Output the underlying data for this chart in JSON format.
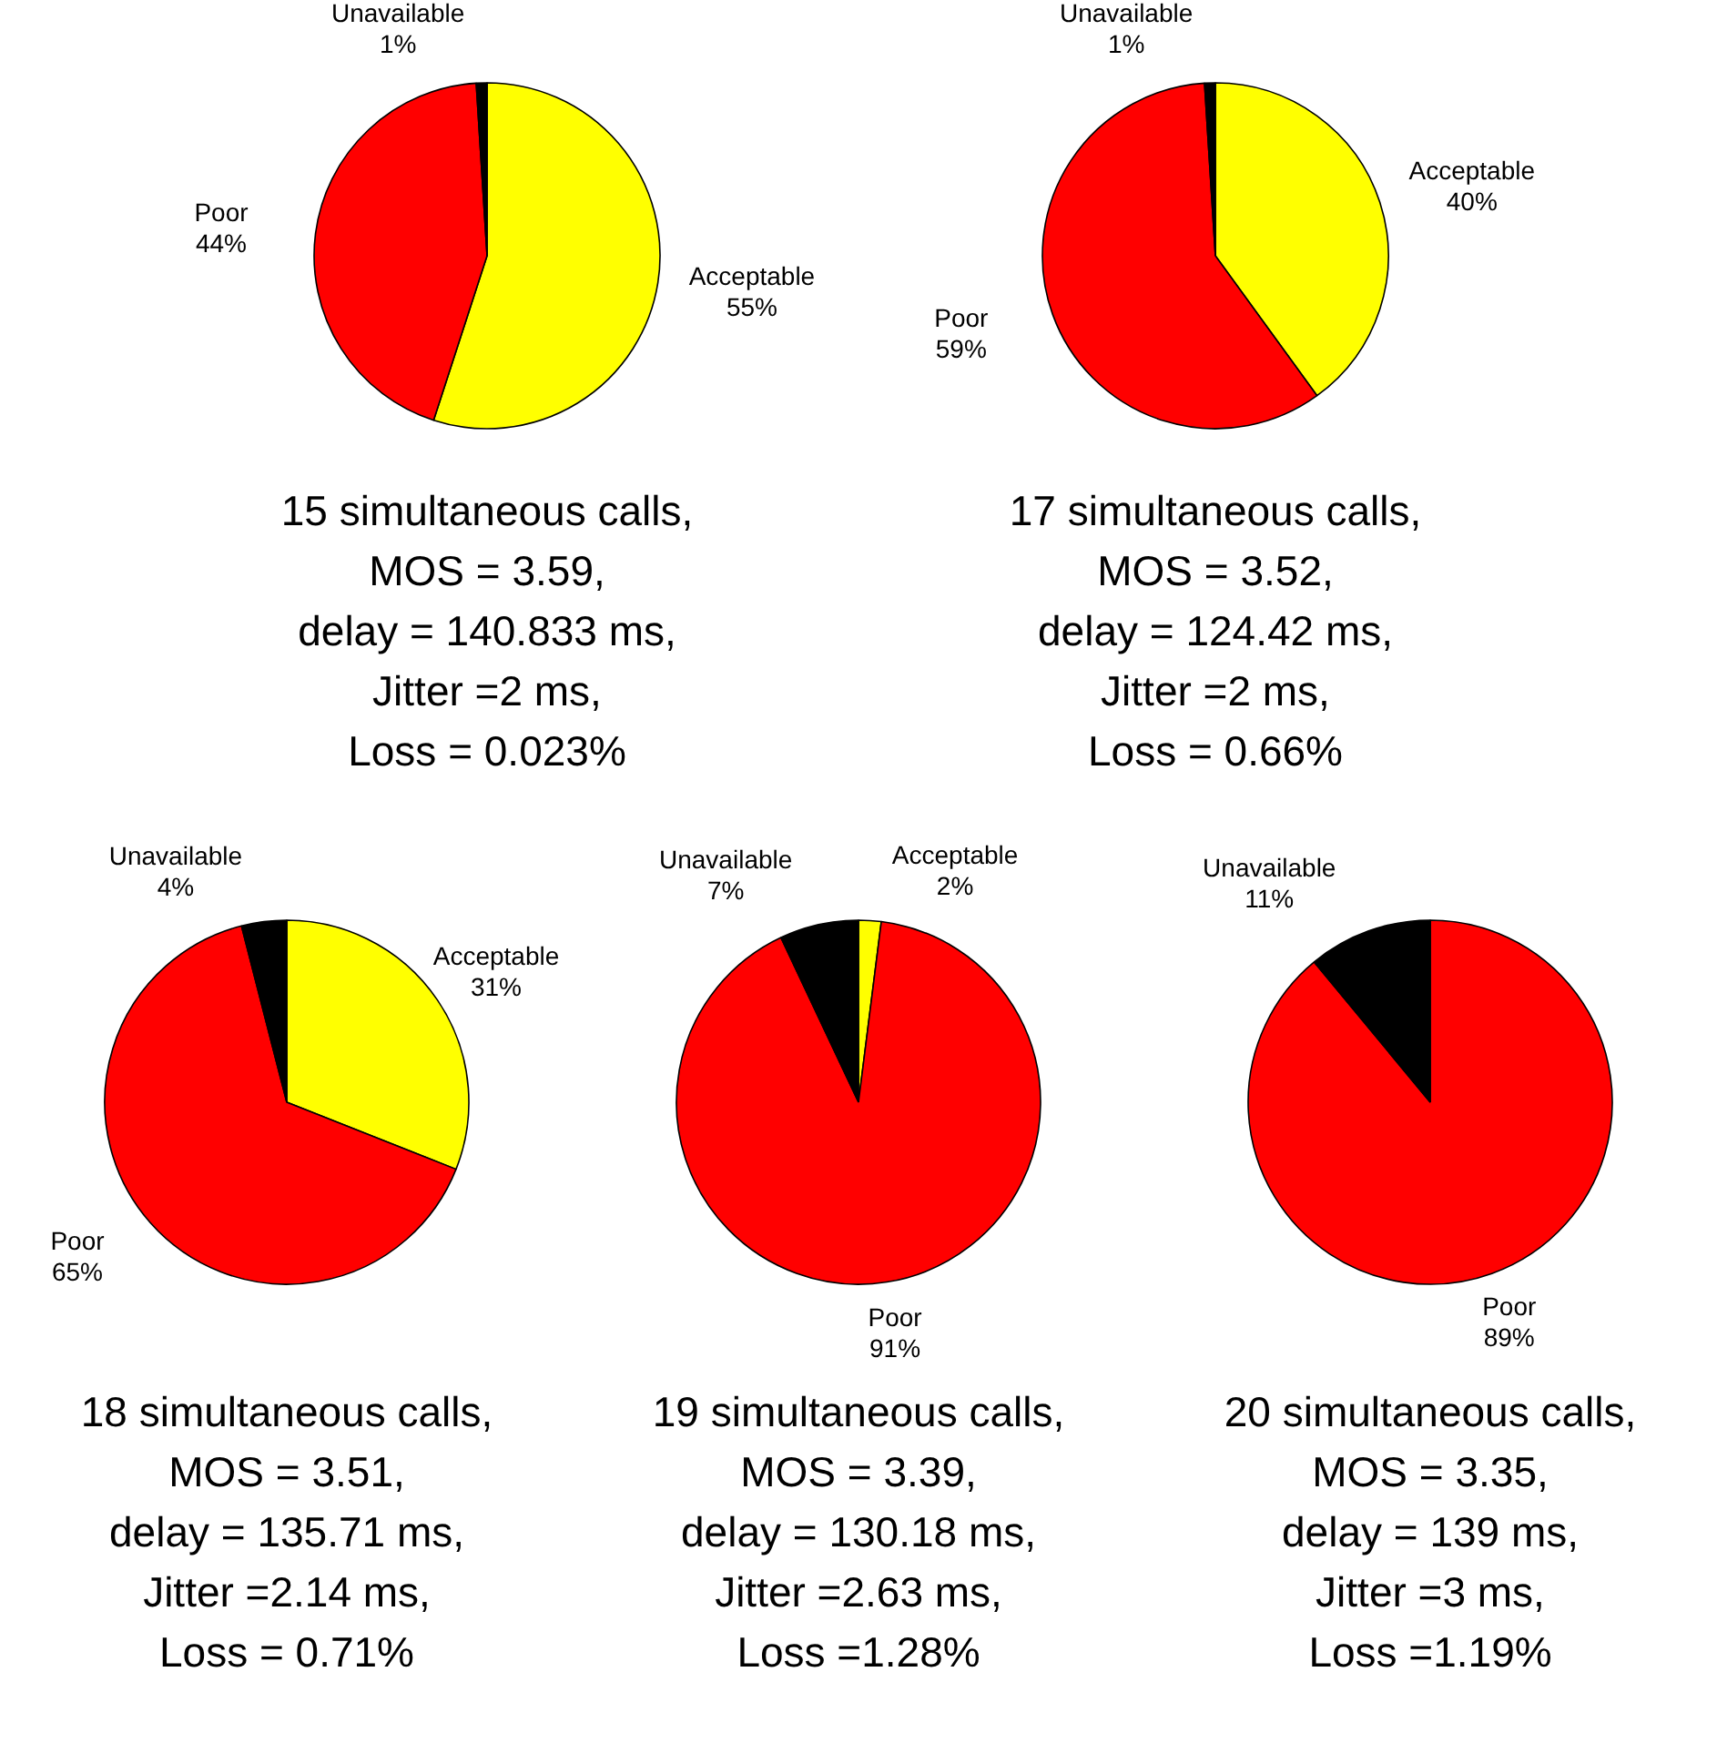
{
  "chart_data": [
    {
      "type": "pie",
      "categories": [
        "Acceptable",
        "Poor",
        "Unavailable"
      ],
      "values": [
        55,
        44,
        1
      ],
      "colors": [
        "#ffff00",
        "#ff0000",
        "#000000"
      ],
      "value_labels": [
        "55%",
        "44%",
        "1%"
      ],
      "annotations": [
        "15 simultaneous calls,",
        "MOS = 3.59,",
        "delay = 140.833 ms,",
        "Jitter =2 ms,",
        "Loss = 0.023%"
      ]
    },
    {
      "type": "pie",
      "categories": [
        "Acceptable",
        "Poor",
        "Unavailable"
      ],
      "values": [
        40,
        59,
        1
      ],
      "colors": [
        "#ffff00",
        "#ff0000",
        "#000000"
      ],
      "value_labels": [
        "40%",
        "59%",
        "1%"
      ],
      "annotations": [
        "17 simultaneous calls,",
        "MOS = 3.52,",
        "delay = 124.42 ms,",
        "Jitter =2 ms,",
        "Loss = 0.66%"
      ]
    },
    {
      "type": "pie",
      "categories": [
        "Acceptable",
        "Poor",
        "Unavailable"
      ],
      "values": [
        31,
        65,
        4
      ],
      "colors": [
        "#ffff00",
        "#ff0000",
        "#000000"
      ],
      "value_labels": [
        "31%",
        "65%",
        "4%"
      ],
      "annotations": [
        "18 simultaneous calls,",
        "MOS = 3.51,",
        "delay = 135.71 ms,",
        "Jitter =2.14 ms,",
        "Loss = 0.71%"
      ]
    },
    {
      "type": "pie",
      "categories": [
        "Acceptable",
        "Poor",
        "Unavailable"
      ],
      "values": [
        2,
        91,
        7
      ],
      "colors": [
        "#ffff00",
        "#ff0000",
        "#000000"
      ],
      "value_labels": [
        "2%",
        "91%",
        "7%"
      ],
      "annotations": [
        "19 simultaneous calls,",
        "MOS = 3.39,",
        "delay = 130.18 ms,",
        "Jitter =2.63 ms,",
        "Loss =1.28%"
      ]
    },
    {
      "type": "pie",
      "categories": [
        "Poor",
        "Unavailable"
      ],
      "values": [
        89,
        11
      ],
      "colors": [
        "#ff0000",
        "#000000"
      ],
      "value_labels": [
        "89%",
        "11%"
      ],
      "annotations": [
        "20 simultaneous calls,",
        "MOS = 3.35,",
        "delay = 139 ms,",
        "Jitter =3 ms,",
        "Loss =1.19%"
      ]
    }
  ]
}
